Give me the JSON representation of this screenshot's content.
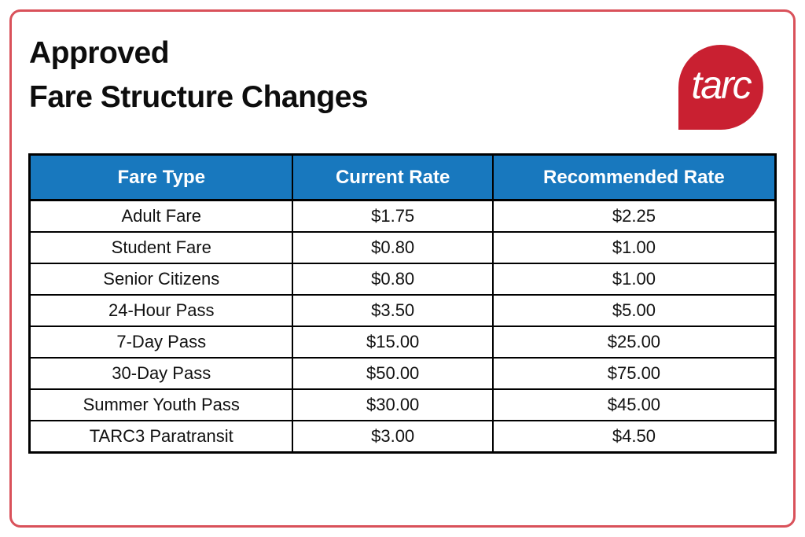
{
  "page": {
    "title_line1": "Approved",
    "title_line2": "Fare Structure Changes"
  },
  "logo": {
    "text": "tarc",
    "shape": "teardrop-circle-with-bottom-left-point",
    "background_color": "#c92031",
    "text_color": "#ffffff"
  },
  "colors": {
    "outer_border_red": "#d9515a",
    "table_header_blue": "#1878be",
    "table_border_black": "#000000",
    "title_text": "#0d0d0d"
  },
  "table": {
    "headers": [
      "Fare Type",
      "Current Rate",
      "Recommended Rate"
    ],
    "rows": [
      {
        "fare_type": "Adult Fare",
        "current_rate": "$1.75",
        "recommended_rate": "$2.25"
      },
      {
        "fare_type": "Student Fare",
        "current_rate": "$0.80",
        "recommended_rate": "$1.00"
      },
      {
        "fare_type": "Senior Citizens",
        "current_rate": "$0.80",
        "recommended_rate": "$1.00"
      },
      {
        "fare_type": "24-Hour Pass",
        "current_rate": "$3.50",
        "recommended_rate": "$5.00"
      },
      {
        "fare_type": "7-Day Pass",
        "current_rate": "$15.00",
        "recommended_rate": "$25.00"
      },
      {
        "fare_type": "30-Day Pass",
        "current_rate": "$50.00",
        "recommended_rate": "$75.00"
      },
      {
        "fare_type": "Summer Youth Pass",
        "current_rate": "$30.00",
        "recommended_rate": "$45.00"
      },
      {
        "fare_type": "TARC3 Paratransit",
        "current_rate": "$3.00",
        "recommended_rate": "$4.50"
      }
    ]
  }
}
